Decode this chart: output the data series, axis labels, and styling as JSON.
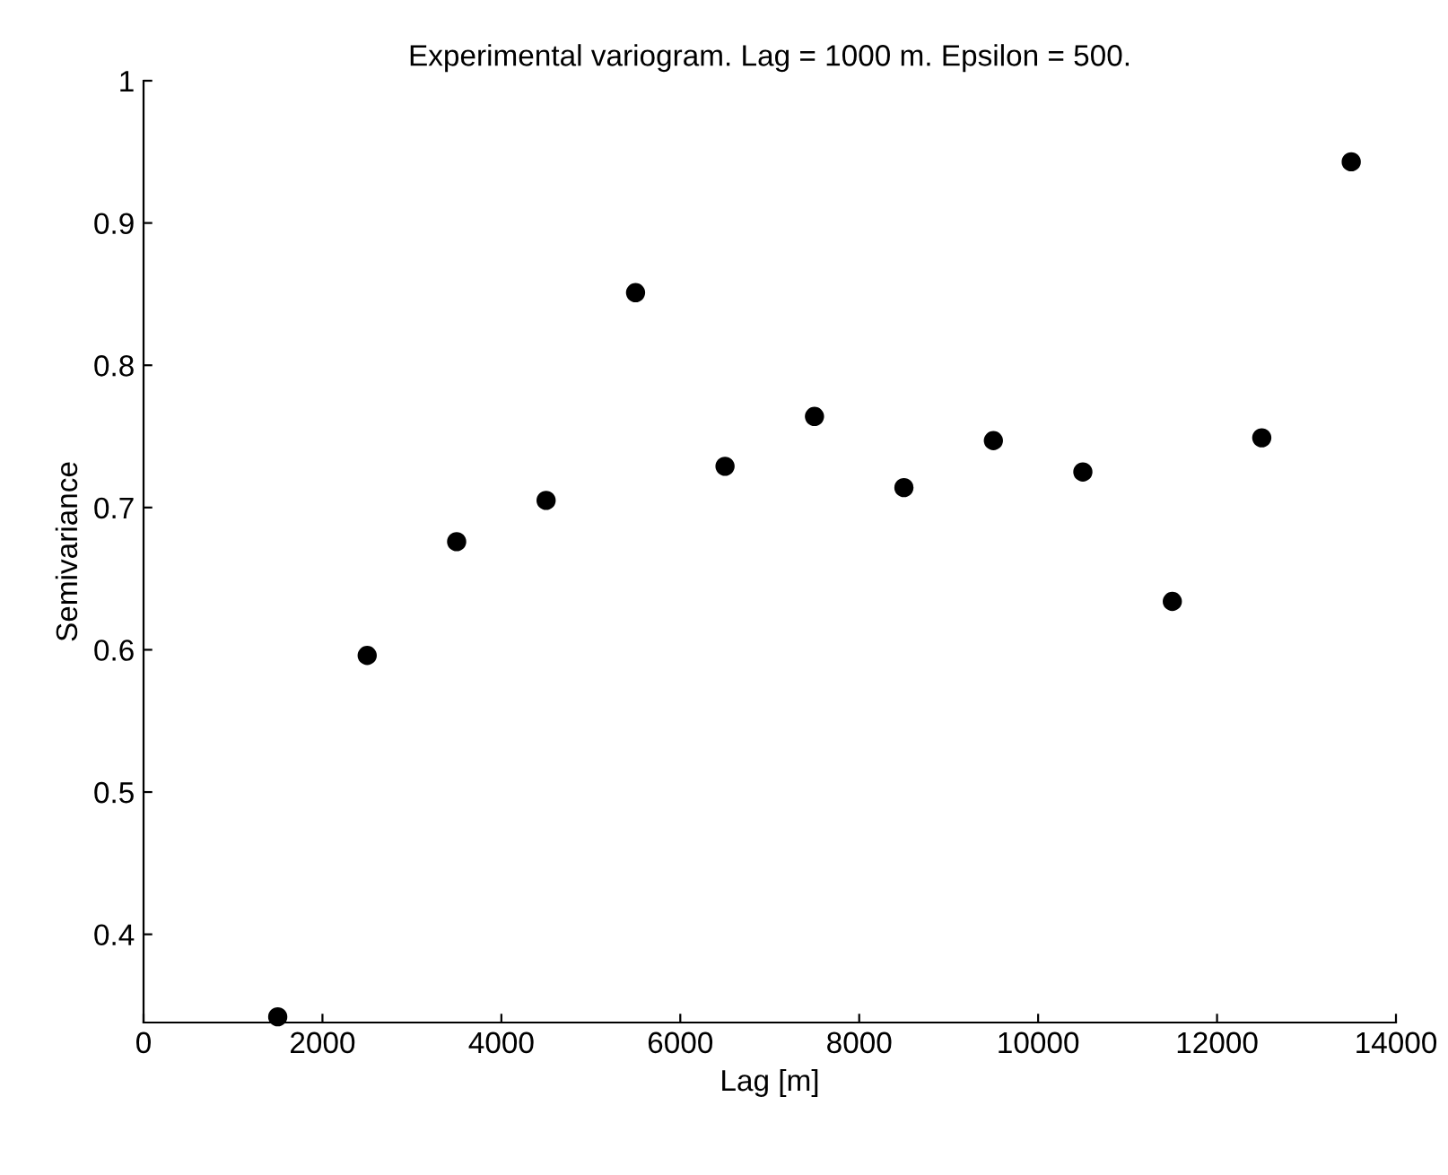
{
  "chart_data": {
    "type": "scatter",
    "title": "Experimental variogram. Lag = 1000 m. Epsilon = 500.",
    "xlabel": "Lag [m]",
    "ylabel": "Semivariance",
    "x": [
      1500,
      2500,
      3500,
      4500,
      5500,
      6500,
      7500,
      8500,
      9500,
      10500,
      11500,
      12500,
      13500
    ],
    "series": [
      {
        "color": "#000000",
        "values": [
          0.342,
          0.596,
          0.676,
          0.705,
          0.851,
          0.729,
          0.764,
          0.714,
          0.747,
          0.725,
          0.634,
          0.749,
          0.943
        ]
      }
    ],
    "xlim": [
      0,
      14000
    ],
    "xticks": [
      0,
      2000,
      4000,
      6000,
      8000,
      10000,
      12000,
      14000
    ],
    "ylim": [
      0.338,
      1
    ],
    "yticks": [
      0.4,
      0.5,
      0.6,
      0.7,
      0.8,
      0.9,
      1
    ],
    "marker": "circle",
    "grid": false,
    "legend": false
  }
}
